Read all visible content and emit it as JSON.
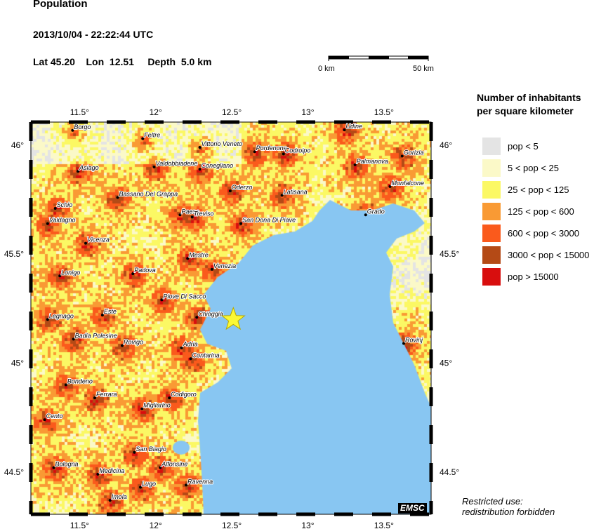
{
  "header": {
    "title": "Population",
    "datetime": "2013/10/04 - 22:22:44 UTC",
    "location": "Lat 45.20    Lon  12.51     Depth  5.0 km"
  },
  "scale_bar": {
    "start_label": "0 km",
    "end_label": "50 km"
  },
  "legend": {
    "title_line1": "Number of inhabitants",
    "title_line2": "per square kilometer",
    "items": [
      {
        "label": "pop < 5",
        "color": "#e4e4e4"
      },
      {
        "label": "5 < pop < 25",
        "color": "#fbf9c8"
      },
      {
        "label": "25 < pop < 125",
        "color": "#fbf864"
      },
      {
        "label": "125 < pop < 600",
        "color": "#f99a34"
      },
      {
        "label": "600 < pop < 3000",
        "color": "#fa5a1c"
      },
      {
        "label": "3000 < pop < 15000",
        "color": "#b44a16"
      },
      {
        "label": "pop > 15000",
        "color": "#d80e0e"
      }
    ]
  },
  "map": {
    "lon_range": [
      11.18,
      13.81
    ],
    "lat_range": [
      44.306,
      46.106
    ],
    "lon_ticks": [
      "11.5°",
      "12°",
      "12.5°",
      "13°",
      "13.5°"
    ],
    "lon_tick_values": [
      11.5,
      12,
      12.5,
      13,
      13.5
    ],
    "lat_ticks": [
      "46°",
      "45.5°",
      "45°",
      "44.5°"
    ],
    "lat_tick_values": [
      46,
      45.5,
      45,
      44.5
    ],
    "sea_color": "#88c6f2",
    "epicenter": {
      "lat": 45.2,
      "lon": 12.51,
      "icon": "star-icon",
      "color": "#fbf834"
    },
    "cities": [
      {
        "name": "Borgo",
        "lon": 11.454,
        "lat": 46.068
      },
      {
        "name": "Feltre",
        "lon": 11.915,
        "lat": 46.03
      },
      {
        "name": "Vittorio Veneto",
        "lon": 12.29,
        "lat": 45.99
      },
      {
        "name": "Udine",
        "lon": 13.24,
        "lat": 46.07
      },
      {
        "name": "Pordenone",
        "lon": 12.65,
        "lat": 45.97
      },
      {
        "name": "Codroipo",
        "lon": 12.84,
        "lat": 45.96
      },
      {
        "name": "Gorizia",
        "lon": 13.62,
        "lat": 45.95
      },
      {
        "name": "Asiago",
        "lon": 11.49,
        "lat": 45.88
      },
      {
        "name": "Valdobbiadene",
        "lon": 11.99,
        "lat": 45.9
      },
      {
        "name": "Conegliano",
        "lon": 12.29,
        "lat": 45.89
      },
      {
        "name": "Palmanova",
        "lon": 13.31,
        "lat": 45.91
      },
      {
        "name": "Monfalcone",
        "lon": 13.54,
        "lat": 45.81
      },
      {
        "name": "Oderzo",
        "lon": 12.49,
        "lat": 45.79
      },
      {
        "name": "Latisana",
        "lon": 12.83,
        "lat": 45.77
      },
      {
        "name": "Bassano Del Grappa",
        "lon": 11.75,
        "lat": 45.76
      },
      {
        "name": "Schio",
        "lon": 11.34,
        "lat": 45.71
      },
      {
        "name": "Grado",
        "lon": 13.38,
        "lat": 45.68
      },
      {
        "name": "Paese",
        "lon": 12.16,
        "lat": 45.68
      },
      {
        "name": "Treviso",
        "lon": 12.24,
        "lat": 45.67
      },
      {
        "name": "Valdagno",
        "lon": 11.29,
        "lat": 45.64
      },
      {
        "name": "San Dona Di Piave",
        "lon": 12.56,
        "lat": 45.64
      },
      {
        "name": "Vicenza",
        "lon": 11.54,
        "lat": 45.55
      },
      {
        "name": "Mestre",
        "lon": 12.21,
        "lat": 45.48
      },
      {
        "name": "Venezia",
        "lon": 12.37,
        "lat": 45.43
      },
      {
        "name": "Lonigo",
        "lon": 11.37,
        "lat": 45.4
      },
      {
        "name": "Padova",
        "lon": 11.85,
        "lat": 45.41
      },
      {
        "name": "Piove Di Sacco",
        "lon": 12.04,
        "lat": 45.29
      },
      {
        "name": "Este",
        "lon": 11.65,
        "lat": 45.22
      },
      {
        "name": "Chioggia",
        "lon": 12.27,
        "lat": 45.21
      },
      {
        "name": "Legnago",
        "lon": 11.29,
        "lat": 45.2
      },
      {
        "name": "Badia Polesine",
        "lon": 11.46,
        "lat": 45.11
      },
      {
        "name": "Rovigo",
        "lon": 11.78,
        "lat": 45.08
      },
      {
        "name": "Adria",
        "lon": 12.17,
        "lat": 45.07
      },
      {
        "name": "Rovinj",
        "lon": 13.63,
        "lat": 45.09
      },
      {
        "name": "Contarina",
        "lon": 12.23,
        "lat": 45.02
      },
      {
        "name": "Bondeno",
        "lon": 11.41,
        "lat": 44.9
      },
      {
        "name": "Ferrara",
        "lon": 11.6,
        "lat": 44.84
      },
      {
        "name": "Codigoro",
        "lon": 12.09,
        "lat": 44.84
      },
      {
        "name": "Migliarino",
        "lon": 11.91,
        "lat": 44.79
      },
      {
        "name": "Cento",
        "lon": 11.27,
        "lat": 44.74
      },
      {
        "name": "San Biagio",
        "lon": 11.86,
        "lat": 44.59
      },
      {
        "name": "Alfonsine",
        "lon": 12.03,
        "lat": 44.52
      },
      {
        "name": "Bologna",
        "lon": 11.33,
        "lat": 44.52
      },
      {
        "name": "Medicina",
        "lon": 11.62,
        "lat": 44.49
      },
      {
        "name": "Lugo",
        "lon": 11.9,
        "lat": 44.43
      },
      {
        "name": "Ravenna",
        "lon": 12.2,
        "lat": 44.44
      },
      {
        "name": "Imola",
        "lon": 11.7,
        "lat": 44.37
      }
    ]
  },
  "watermark": "EMSC",
  "note": {
    "line1": "Restricted use:",
    "line2": "redistribution forbidden"
  }
}
